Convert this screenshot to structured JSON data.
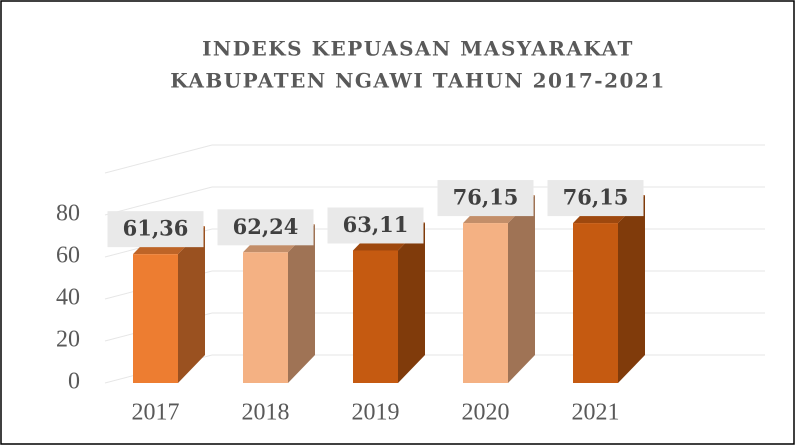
{
  "chart_data": {
    "type": "bar3d",
    "title": [
      "INDEKS KEPUASAN MASYARAKAT",
      "KABUPATEN NGAWI TAHUN 2017-2021"
    ],
    "categories": [
      "2017",
      "2018",
      "2019",
      "2020",
      "2021"
    ],
    "values": [
      61.36,
      62.24,
      63.11,
      76.15,
      76.15
    ],
    "value_labels": [
      "61,36",
      "62,24",
      "63,11",
      "76,15",
      "76,15"
    ],
    "colors": [
      "#ed7d31",
      "#f4b183",
      "#c55a11",
      "#f4b183",
      "#c55a11"
    ],
    "ylim": [
      0,
      100
    ],
    "yticks": [
      0,
      20,
      40,
      60,
      80
    ],
    "grid": true
  }
}
